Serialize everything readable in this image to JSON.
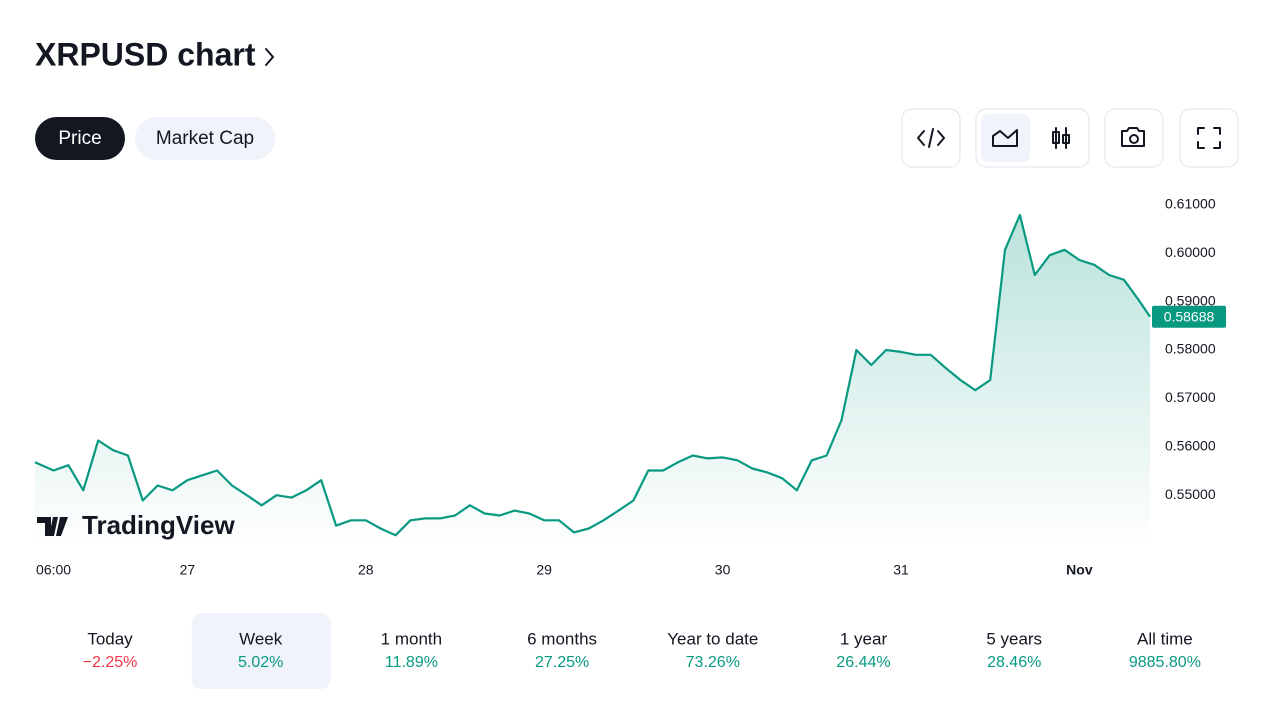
{
  "header": {
    "title": "XRPUSD chart"
  },
  "tabs": {
    "items": [
      "Price",
      "Market Cap"
    ],
    "selected": "Price"
  },
  "chart_data": {
    "type": "line",
    "color": "#089981",
    "x": [
      -2.5,
      0,
      2,
      4,
      6,
      8,
      10,
      12,
      14,
      16,
      18,
      20,
      22,
      24,
      26,
      28,
      30,
      32,
      34,
      36,
      38,
      40,
      42,
      44,
      46,
      48,
      50,
      52,
      54,
      56,
      58,
      60,
      62,
      64,
      66,
      68,
      70,
      72,
      74,
      76,
      78,
      80,
      82,
      84,
      86,
      88,
      90,
      92,
      94,
      96,
      98,
      100,
      102,
      104,
      106,
      108,
      110,
      112,
      114,
      116,
      118,
      120,
      122,
      124,
      126,
      128,
      130,
      132,
      134,
      136,
      138,
      140,
      142,
      144,
      146,
      147.5
    ],
    "series": [
      {
        "name": "XRPUSD",
        "color": "#089981",
        "values": [
          0.5568,
          0.5551,
          0.5562,
          0.551,
          0.5613,
          0.5593,
          0.5582,
          0.5489,
          0.552,
          0.551,
          0.5531,
          0.5541,
          0.5551,
          0.552,
          0.55,
          0.5479,
          0.55,
          0.5495,
          0.551,
          0.5531,
          0.5437,
          0.5448,
          0.5448,
          0.5431,
          0.5417,
          0.5448,
          0.5452,
          0.5452,
          0.5458,
          0.5479,
          0.5462,
          0.5458,
          0.5468,
          0.5462,
          0.5448,
          0.5448,
          0.5423,
          0.5431,
          0.5448,
          0.5468,
          0.5489,
          0.5551,
          0.5551,
          0.5568,
          0.5582,
          0.5576,
          0.5578,
          0.5572,
          0.5555,
          0.5547,
          0.5535,
          0.551,
          0.5572,
          0.5582,
          0.5655,
          0.58,
          0.5769,
          0.58,
          0.5796,
          0.579,
          0.579,
          0.5763,
          0.5738,
          0.5717,
          0.5738,
          0.6007,
          0.6079,
          0.5955,
          0.5996,
          0.6007,
          0.5986,
          0.5976,
          0.5955,
          0.5945,
          0.5903,
          0.58688
        ]
      }
    ],
    "xlim": [
      -2.5,
      147.5
    ],
    "xticks": [
      {
        "value": 0,
        "label": "06:00"
      },
      {
        "value": 18,
        "label": "27"
      },
      {
        "value": 42,
        "label": "28"
      },
      {
        "value": 66,
        "label": "29"
      },
      {
        "value": 90,
        "label": "30"
      },
      {
        "value": 114,
        "label": "31"
      },
      {
        "value": 138,
        "label": "Nov"
      }
    ],
    "ylim": [
      0.5397,
      0.6141
    ],
    "yticks": [
      {
        "value": 0.55,
        "label": "0.55000"
      },
      {
        "value": 0.56,
        "label": "0.56000"
      },
      {
        "value": 0.57,
        "label": "0.57000"
      },
      {
        "value": 0.58,
        "label": "0.58000"
      },
      {
        "value": 0.59,
        "label": "0.59000"
      },
      {
        "value": 0.6,
        "label": "0.60000"
      },
      {
        "value": 0.61,
        "label": "0.61000"
      }
    ],
    "last_price": {
      "value": 0.58688,
      "label": "0.58688"
    },
    "watermark": "TradingView"
  },
  "periods": {
    "selected": "Week",
    "items": [
      {
        "label": "Today",
        "change": "−2.25%",
        "color": "#f23645"
      },
      {
        "label": "Week",
        "change": "5.02%",
        "color": "#089981"
      },
      {
        "label": "1 month",
        "change": "11.89%",
        "color": "#089981"
      },
      {
        "label": "6 months",
        "change": "27.25%",
        "color": "#089981"
      },
      {
        "label": "Year to date",
        "change": "73.26%",
        "color": "#089981"
      },
      {
        "label": "1 year",
        "change": "26.44%",
        "color": "#089981"
      },
      {
        "label": "5 years",
        "change": "28.46%",
        "color": "#089981"
      },
      {
        "label": "All time",
        "change": "9885.80%",
        "color": "#089981"
      }
    ]
  }
}
